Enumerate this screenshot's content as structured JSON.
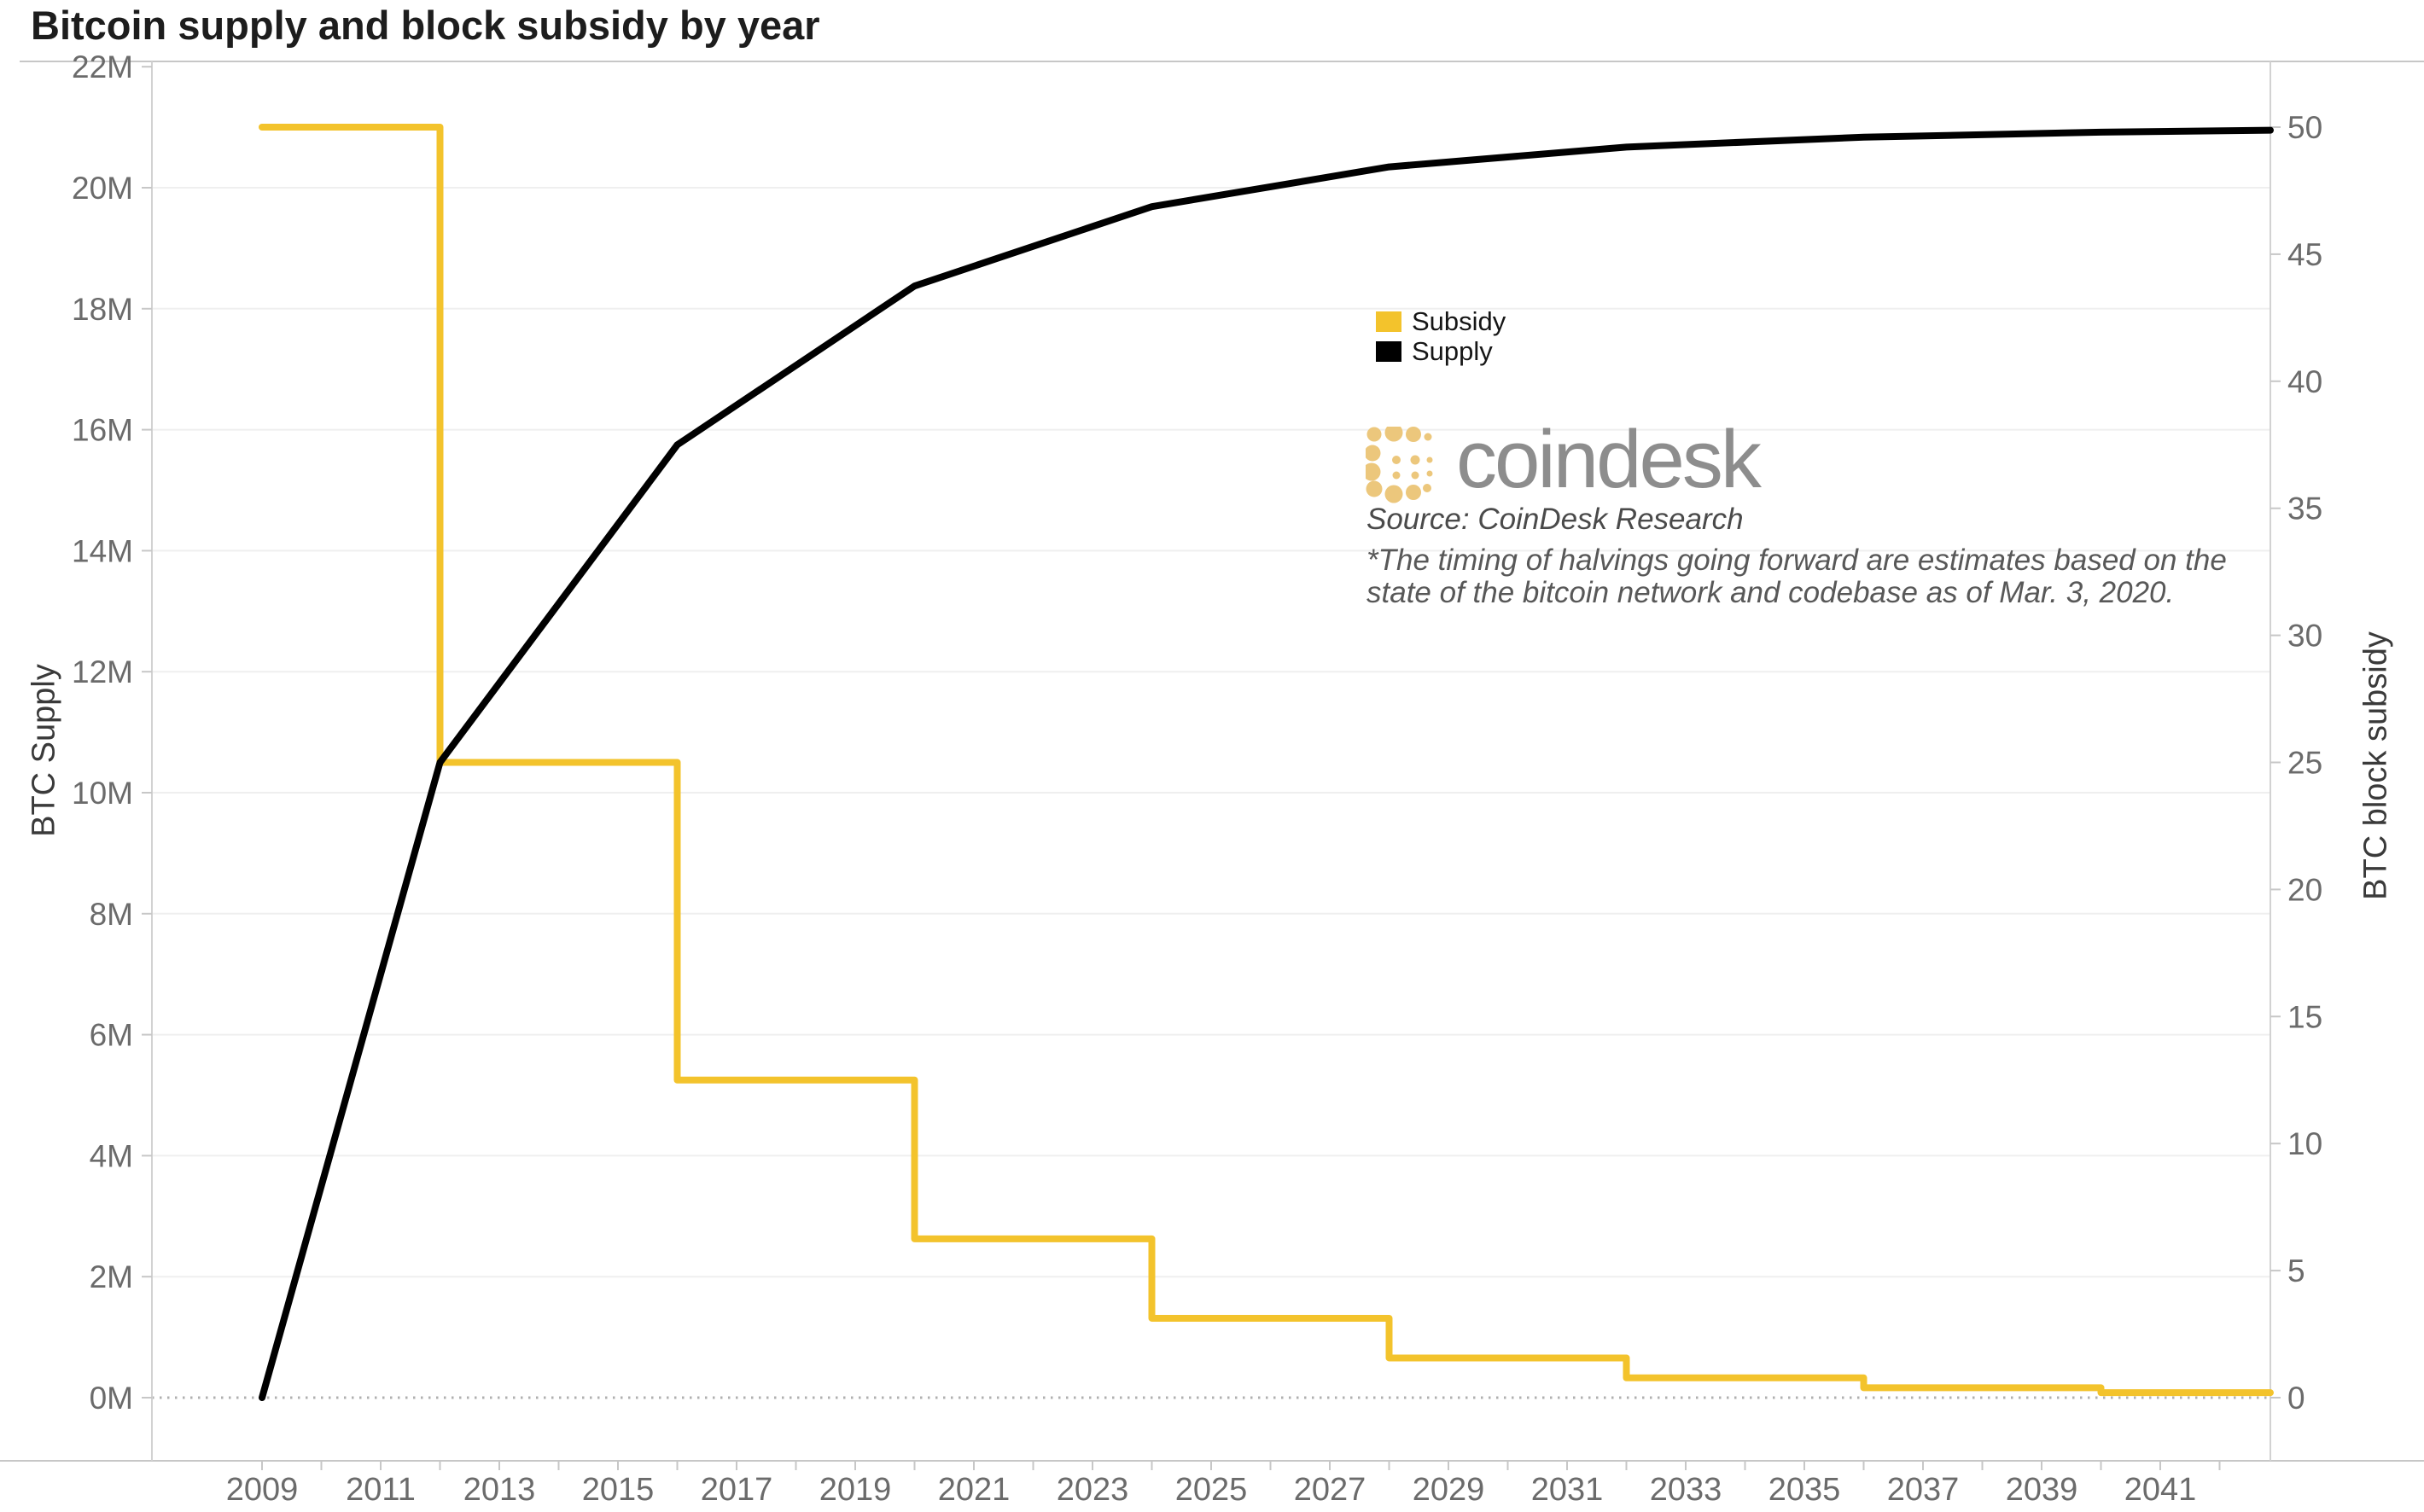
{
  "title": "Bitcoin supply and block subsidy by year",
  "legend": [
    {
      "label": "Subsidy",
      "color": "#F3C32C"
    },
    {
      "label": "Supply",
      "color": "#000000"
    }
  ],
  "branding": {
    "logo_text": "coindesk",
    "logo_color": "#ECC77C",
    "source": "Source: CoinDesk Research",
    "note_line1": "*The timing of halvings going forward are estimates based on the",
    "note_line2": "state of the bitcoin network and codebase as of Mar. 3, 2020."
  },
  "axes": {
    "left": {
      "title": "BTC Supply",
      "tick_values": [
        0,
        2,
        4,
        6,
        8,
        10,
        12,
        14,
        16,
        18,
        20,
        22
      ],
      "tick_labels": [
        "0M",
        "2M",
        "4M",
        "6M",
        "8M",
        "10M",
        "12M",
        "14M",
        "16M",
        "18M",
        "20M",
        "22M"
      ]
    },
    "right": {
      "title": "BTC block subsidy",
      "tick_values": [
        0,
        5,
        10,
        15,
        20,
        25,
        30,
        35,
        40,
        45,
        50
      ],
      "tick_labels": [
        "0",
        "5",
        "10",
        "15",
        "20",
        "25",
        "30",
        "35",
        "40",
        "45",
        "50"
      ]
    },
    "x": {
      "tick_values": [
        2009,
        2011,
        2013,
        2015,
        2017,
        2019,
        2021,
        2023,
        2025,
        2027,
        2029,
        2031,
        2033,
        2035,
        2037,
        2039,
        2041
      ],
      "tick_labels": [
        "2009",
        "2011",
        "2013",
        "2015",
        "2017",
        "2019",
        "2021",
        "2023",
        "2025",
        "2027",
        "2029",
        "2031",
        "2033",
        "2035",
        "2037",
        "2039",
        "2041"
      ],
      "minor_tick_start": 2009,
      "minor_tick_end": 2042
    }
  },
  "chart_data": {
    "type": "line",
    "title": "Bitcoin supply and block subsidy by year",
    "xlabel": "",
    "x_range": [
      2008.2,
      2042.9
    ],
    "left_axis": {
      "label": "BTC Supply",
      "unit": "million BTC",
      "ylim": [
        0,
        22
      ]
    },
    "right_axis": {
      "label": "BTC block subsidy",
      "unit": "BTC per block",
      "ylim_alignment": "50 on right aligns with 21M on left; 0 aligns with 0M"
    },
    "grid": "horizontal light gray every 2M",
    "zero_line": "dotted gray at 0",
    "legend_position": "upper middle-right",
    "series": [
      {
        "name": "Supply",
        "axis": "left",
        "style": "line",
        "color": "#000000",
        "points": [
          [
            2009,
            0
          ],
          [
            2012,
            10.5
          ],
          [
            2016,
            15.75
          ],
          [
            2020,
            18.375
          ],
          [
            2024,
            19.6875
          ],
          [
            2028,
            20.344
          ],
          [
            2032,
            20.672
          ],
          [
            2036,
            20.836
          ],
          [
            2040,
            20.918
          ],
          [
            2042.9,
            20.95
          ]
        ]
      },
      {
        "name": "Subsidy",
        "axis": "right",
        "style": "step-after",
        "color": "#F3C32C",
        "points": [
          [
            2009,
            50
          ],
          [
            2012,
            25
          ],
          [
            2016,
            12.5
          ],
          [
            2020,
            6.25
          ],
          [
            2024,
            3.125
          ],
          [
            2028,
            1.5625
          ],
          [
            2032,
            0.78125
          ],
          [
            2036,
            0.390625
          ],
          [
            2040,
            0.1953125
          ],
          [
            2042.9,
            0.1953125
          ]
        ]
      }
    ]
  }
}
